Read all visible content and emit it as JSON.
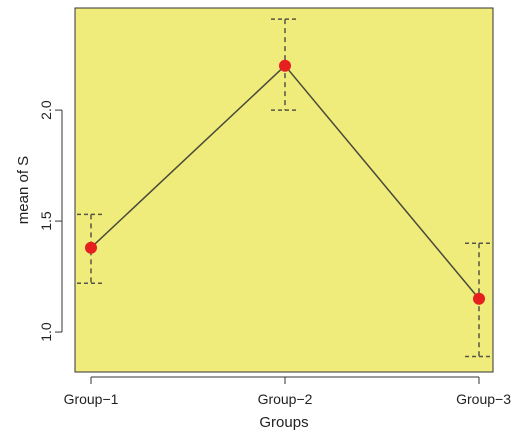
{
  "chart_data": {
    "type": "line",
    "xlabel": "Groups",
    "ylabel": "mean of S",
    "categories": [
      "Group−1",
      "Group−2",
      "Group−3"
    ],
    "series": [
      {
        "values": [
          1.38,
          2.2,
          1.15
        ],
        "error_low": [
          1.22,
          2.0,
          0.89
        ],
        "error_high": [
          1.53,
          2.41,
          1.4
        ]
      }
    ],
    "yticks": [
      "1.0",
      "1.5",
      "2.0"
    ],
    "ytick_values": [
      1.0,
      1.5,
      2.0
    ],
    "ylim": [
      0.82,
      2.46
    ],
    "grid": false,
    "colors": {
      "panel": "#f0ec7c",
      "line": "#4a4a38",
      "point": "#e61f1f",
      "error_bar": "#555544"
    }
  }
}
